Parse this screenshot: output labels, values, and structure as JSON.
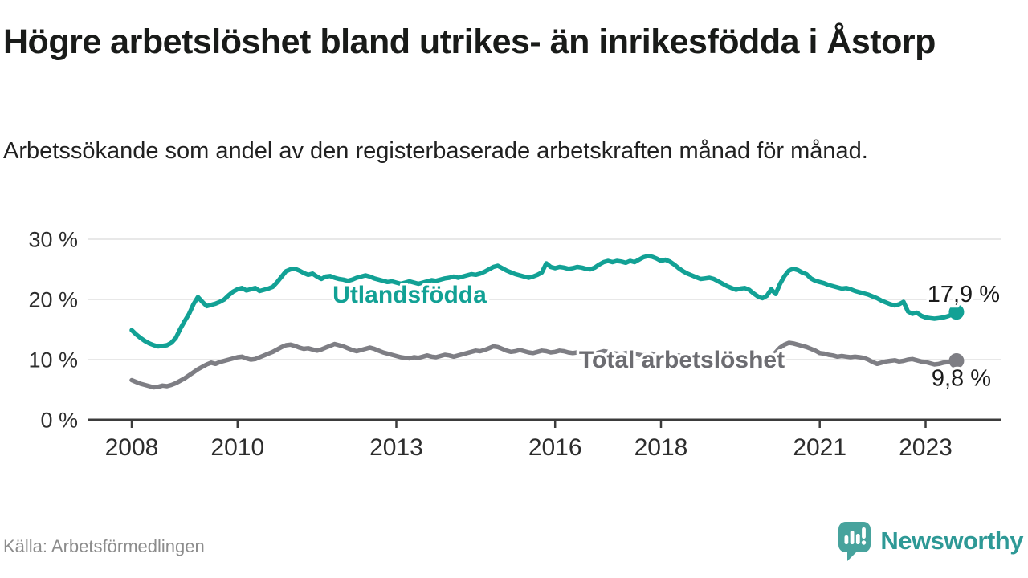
{
  "header": {
    "title": "Högre arbetslöshet bland utrikes- än inrikesfödda i Åstorp",
    "subtitle": "Arbetssökande som andel av den registerbaserade arbetskraften månad för månad."
  },
  "footer": {
    "source": "Källa: Arbetsförmedlingen",
    "brand": "Newsworthy"
  },
  "colors": {
    "foreign_born": "#12a195",
    "total": "#7e7e84",
    "grid": "#e0e0e0",
    "axis": "#3b3b3b",
    "tick_label": "#2d2d2d",
    "value_label": "#1a1a1a",
    "total_label": "#6c6c71",
    "brand_teal": "#2e9996",
    "logo_fill": "#47a39d"
  },
  "chart_data": {
    "type": "line",
    "unit": "%",
    "frequency": "monthly",
    "x_start_year": 2008,
    "x_ticks": [
      2008,
      2010,
      2013,
      2016,
      2018,
      2021,
      2023
    ],
    "y_ticks": [
      0,
      10,
      20,
      30
    ],
    "ylim": [
      0,
      32
    ],
    "grid": "horizontal-only",
    "legend_position": "inline-labels",
    "series": [
      {
        "name": "Utlandsfödda",
        "color": "#12a195",
        "end_label": "17,9 %",
        "end_value": 17.9,
        "values": [
          14.9,
          14.2,
          13.6,
          13.1,
          12.7,
          12.4,
          12.2,
          12.3,
          12.4,
          12.8,
          13.6,
          15.1,
          16.4,
          17.6,
          19.2,
          20.4,
          19.6,
          18.9,
          19.1,
          19.3,
          19.6,
          20.0,
          20.7,
          21.3,
          21.7,
          21.9,
          21.5,
          21.7,
          21.9,
          21.4,
          21.6,
          21.8,
          22.1,
          22.9,
          23.8,
          24.7,
          25.0,
          25.1,
          24.8,
          24.4,
          24.1,
          24.3,
          23.8,
          23.4,
          23.8,
          23.9,
          23.6,
          23.4,
          23.3,
          23.1,
          23.3,
          23.6,
          23.8,
          24.0,
          23.8,
          23.5,
          23.3,
          23.1,
          22.9,
          23.0,
          22.8,
          22.6,
          22.8,
          23.0,
          22.8,
          22.6,
          22.8,
          23.0,
          23.2,
          23.1,
          23.3,
          23.5,
          23.6,
          23.8,
          23.6,
          23.8,
          24.0,
          24.2,
          24.1,
          24.3,
          24.6,
          25.0,
          25.4,
          25.6,
          25.2,
          24.8,
          24.5,
          24.2,
          24.0,
          23.8,
          23.6,
          23.8,
          24.1,
          24.5,
          26.0,
          25.4,
          25.2,
          25.4,
          25.3,
          25.1,
          25.2,
          25.4,
          25.3,
          25.1,
          25.0,
          25.3,
          25.8,
          26.2,
          26.4,
          26.2,
          26.4,
          26.3,
          26.1,
          26.4,
          26.2,
          26.6,
          27.0,
          27.2,
          27.1,
          26.8,
          26.4,
          26.6,
          26.3,
          25.8,
          25.2,
          24.7,
          24.3,
          24.0,
          23.7,
          23.4,
          23.5,
          23.6,
          23.4,
          23.0,
          22.6,
          22.2,
          21.9,
          21.6,
          21.8,
          21.9,
          21.6,
          21.0,
          20.5,
          20.2,
          20.6,
          21.7,
          20.9,
          22.6,
          23.9,
          24.8,
          25.1,
          24.9,
          24.5,
          24.2,
          23.5,
          23.1,
          22.9,
          22.7,
          22.4,
          22.2,
          22.0,
          21.8,
          21.9,
          21.7,
          21.4,
          21.2,
          21.0,
          20.8,
          20.5,
          20.2,
          19.8,
          19.5,
          19.2,
          19.0,
          19.2,
          19.6,
          18.0,
          17.6,
          17.8,
          17.3,
          17.0,
          16.9,
          16.8,
          16.9,
          17.0,
          17.2,
          17.5,
          17.9
        ]
      },
      {
        "name": "Total arbetslöshet",
        "color": "#7e7e84",
        "end_label": "9,8 %",
        "end_value": 9.8,
        "values": [
          6.6,
          6.3,
          6.0,
          5.8,
          5.6,
          5.4,
          5.5,
          5.7,
          5.6,
          5.8,
          6.1,
          6.5,
          6.9,
          7.4,
          7.9,
          8.4,
          8.8,
          9.2,
          9.5,
          9.3,
          9.6,
          9.8,
          10.0,
          10.2,
          10.4,
          10.5,
          10.2,
          10.0,
          10.1,
          10.4,
          10.7,
          11.0,
          11.3,
          11.7,
          12.1,
          12.4,
          12.5,
          12.3,
          12.0,
          11.8,
          11.9,
          11.7,
          11.5,
          11.7,
          12.0,
          12.3,
          12.6,
          12.4,
          12.2,
          11.9,
          11.6,
          11.4,
          11.6,
          11.8,
          12.0,
          11.8,
          11.5,
          11.2,
          11.0,
          10.8,
          10.6,
          10.4,
          10.3,
          10.2,
          10.4,
          10.3,
          10.5,
          10.7,
          10.5,
          10.4,
          10.6,
          10.8,
          10.7,
          10.5,
          10.7,
          10.9,
          11.1,
          11.3,
          11.5,
          11.4,
          11.6,
          11.9,
          12.2,
          12.1,
          11.8,
          11.5,
          11.3,
          11.4,
          11.6,
          11.4,
          11.2,
          11.1,
          11.3,
          11.5,
          11.4,
          11.2,
          11.3,
          11.5,
          11.4,
          11.2,
          11.1,
          11.2,
          11.4,
          11.3,
          11.1,
          11.0,
          11.2,
          11.4,
          11.3,
          11.1,
          11.0,
          10.9,
          11.1,
          11.2,
          11.0,
          10.8,
          10.7,
          10.9,
          11.0,
          10.8,
          10.7,
          10.5,
          10.4,
          10.6,
          10.7,
          10.5,
          10.3,
          10.2,
          10.4,
          10.5,
          10.3,
          10.2,
          10.1,
          10.0,
          10.2,
          10.3,
          10.1,
          10.0,
          9.9,
          10.1,
          10.2,
          10.0,
          10.1,
          10.3,
          10.4,
          10.6,
          11.2,
          12.0,
          12.5,
          12.8,
          12.7,
          12.5,
          12.3,
          12.1,
          11.8,
          11.5,
          11.1,
          11.0,
          10.8,
          10.7,
          10.5,
          10.6,
          10.5,
          10.4,
          10.5,
          10.4,
          10.3,
          10.0,
          9.6,
          9.3,
          9.5,
          9.7,
          9.8,
          9.9,
          9.7,
          9.8,
          10.0,
          10.1,
          9.9,
          9.7,
          9.6,
          9.4,
          9.2,
          9.3,
          9.5,
          9.6,
          9.7,
          9.8
        ]
      }
    ]
  }
}
